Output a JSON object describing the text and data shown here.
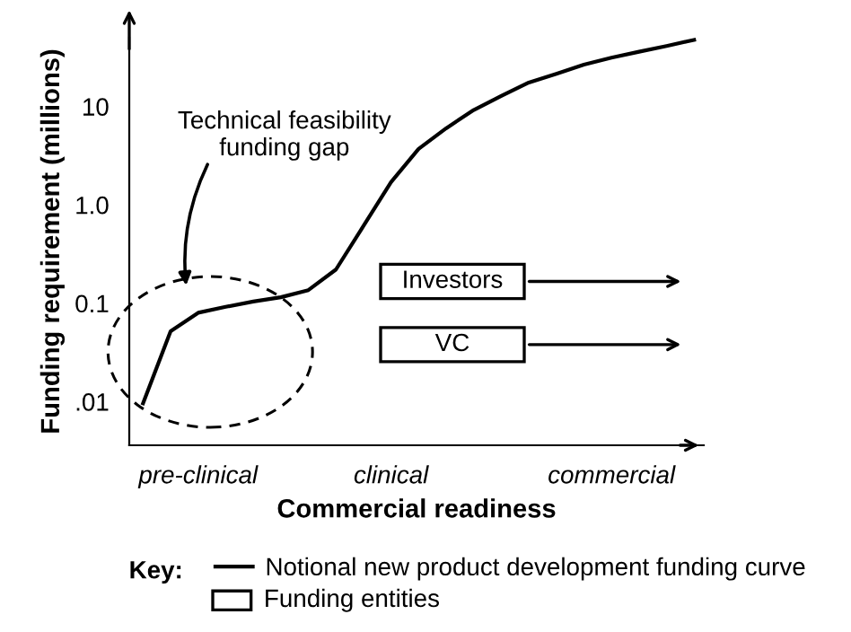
{
  "chart_data": {
    "type": "line",
    "xlabel": "Commercial readiness",
    "ylabel": "Funding requirement (millions)",
    "legend_title": "Key:",
    "legend": "bottom",
    "log": "y",
    "grid": false,
    "marker": "none",
    "line_style": "solid",
    "ylim": [
      0.0036,
      50
    ],
    "yticks": [
      {
        "value": 0.01,
        "label": ".01"
      },
      0.1,
      {
        "value": 1,
        "label": "1.0"
      },
      10
    ],
    "categories": [
      null,
      null,
      "pre-clinical",
      null,
      null,
      null,
      null,
      null,
      null,
      "clinical",
      null,
      null,
      null,
      null,
      null,
      null,
      null,
      "commercial",
      null,
      null,
      null
    ],
    "series": [
      {
        "name": "Notional new product development funding curve",
        "color": "#000000",
        "values": [
          0.0096,
          0.052,
          0.08,
          0.092,
          0.104,
          0.115,
          0.136,
          0.22,
          0.61,
          1.7,
          3.7,
          6.0,
          9.2,
          12.8,
          17.5,
          21.5,
          26.6,
          31.3,
          36.0,
          41.2,
          47.5
        ]
      }
    ],
    "annotations": [
      "Technical feasibility\nfunding gap",
      "Investors",
      "VC",
      "Funding entities"
    ]
  }
}
